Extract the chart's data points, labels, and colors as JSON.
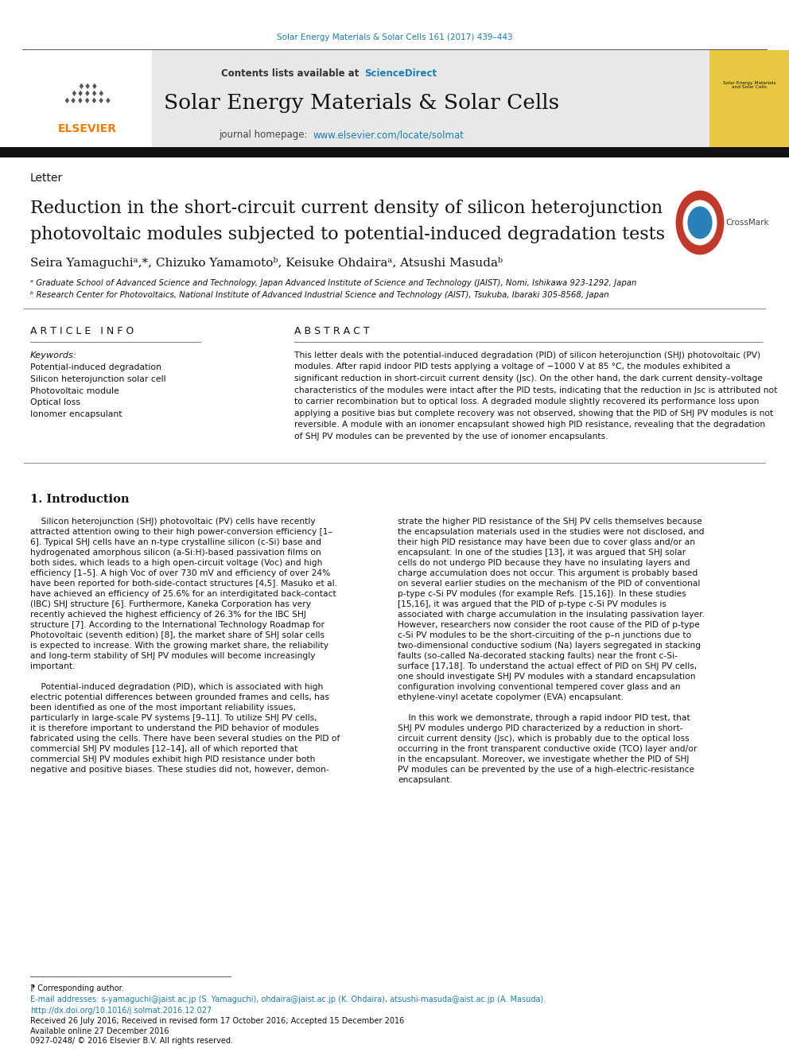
{
  "page_width": 9.92,
  "page_height": 13.23,
  "bg_color": "#ffffff",
  "journal_ref": "Solar Energy Materials & Solar Cells 161 (2017) 439–443",
  "journal_ref_color": "#1a7db5",
  "header_bg": "#e8e8e8",
  "contents_line": "Contents lists available at ",
  "sciencedirect": "ScienceDirect",
  "sciencedirect_color": "#1a7db5",
  "journal_title": "Solar Energy Materials & Solar Cells",
  "journal_homepage_label": "journal homepage: ",
  "journal_url": "www.elsevier.com/locate/solmat",
  "journal_url_color": "#1a7db5",
  "black_bar_color": "#1a1a1a",
  "letter_label": "Letter",
  "paper_title_line1": "Reduction in the short-circuit current density of silicon heterojunction",
  "paper_title_line2": "photovoltaic modules subjected to potential-induced degradation tests",
  "authors": "Seira Yamaguchiᵃ,*, Chizuko Yamamotoᵇ, Keisuke Ohdairaᵃ, Atsushi Masudaᵇ",
  "affil_a": "ᵃ Graduate School of Advanced Science and Technology, Japan Advanced Institute of Science and Technology (JAIST), Nomi, Ishikawa 923-1292, Japan",
  "affil_b": "ᵇ Research Center for Photovoltaics, National Institute of Advanced Industrial Science and Technology (AIST), Tsukuba, Ibaraki 305-8568, Japan",
  "article_info_label": "A R T I C L E   I N F O",
  "abstract_label": "A B S T R A C T",
  "keywords_label": "Keywords:",
  "keywords": [
    "Potential-induced degradation",
    "Silicon heterojunction solar cell",
    "Photovoltaic module",
    "Optical loss",
    "Ionomer encapsulant"
  ],
  "link_color": "#1a7db5",
  "elsevier_orange": "#f07f00",
  "footer_text1": "⁋ Corresponding author.",
  "footer_text2": "E-mail addresses: s-yamaguchi@jaist.ac.jp (S. Yamaguchi), ohdaira@jaist.ac.jp (K. Ohdaira), atsushi-masuda@aist.ac.jp (A. Masuda).",
  "footer_text3": "http://dx.doi.org/10.1016/j.solmat.2016.12.027",
  "footer_text4": "Received 26 July 2016; Received in revised form 17 October 2016; Accepted 15 December 2016",
  "footer_text5": "Available online 27 December 2016",
  "footer_text6": "0927-0248/ © 2016 Elsevier B.V. All rights reserved.",
  "abstract_lines": [
    "This letter deals with the potential-induced degradation (PID) of silicon heterojunction (SHJ) photovoltaic (PV)",
    "modules. After rapid indoor PID tests applying a voltage of −1000 V at 85 °C, the modules exhibited a",
    "significant reduction in short-circuit current density (Jsc). On the other hand, the dark current density–voltage",
    "characteristics of the modules were intact after the PID tests, indicating that the reduction in Jsc is attributed not",
    "to carrier recombination but to optical loss. A degraded module slightly recovered its performance loss upon",
    "applying a positive bias but complete recovery was not observed, showing that the PID of SHJ PV modules is not",
    "reversible. A module with an ionomer encapsulant showed high PID resistance, revealing that the degradation",
    "of SHJ PV modules can be prevented by the use of ionomer encapsulants."
  ],
  "col1_lines": [
    "    Silicon heterojunction (SHJ) photovoltaic (PV) cells have recently",
    "attracted attention owing to their high power-conversion efficiency [1–",
    "6]. Typical SHJ cells have an n-type crystalline silicon (c-Si) base and",
    "hydrogenated amorphous silicon (a-Si:H)-based passivation films on",
    "both sides, which leads to a high open-circuit voltage (Voc) and high",
    "efficiency [1–5]. A high Voc of over 730 mV and efficiency of over 24%",
    "have been reported for both-side-contact structures [4,5]. Masuko et al.",
    "have achieved an efficiency of 25.6% for an interdigitated back-contact",
    "(IBC) SHJ structure [6]. Furthermore, Kaneka Corporation has very",
    "recently achieved the highest efficiency of 26.3% for the IBC SHJ",
    "structure [7]. According to the International Technology Roadmap for",
    "Photovoltaic (seventh edition) [8], the market share of SHJ solar cells",
    "is expected to increase. With the growing market share, the reliability",
    "and long-term stability of SHJ PV modules will become increasingly",
    "important.",
    "",
    "    Potential-induced degradation (PID), which is associated with high",
    "electric potential differences between grounded frames and cells, has",
    "been identified as one of the most important reliability issues,",
    "particularly in large-scale PV systems [9–11]. To utilize SHJ PV cells,",
    "it is therefore important to understand the PID behavior of modules",
    "fabricated using the cells. There have been several studies on the PID of",
    "commercial SHJ PV modules [12–14], all of which reported that",
    "commercial SHJ PV modules exhibit high PID resistance under both",
    "negative and positive biases. These studies did not, however, demon-"
  ],
  "col2_lines": [
    "strate the higher PID resistance of the SHJ PV cells themselves because",
    "the encapsulation materials used in the studies were not disclosed, and",
    "their high PID resistance may have been due to cover glass and/or an",
    "encapsulant. In one of the studies [13], it was argued that SHJ solar",
    "cells do not undergo PID because they have no insulating layers and",
    "charge accumulation does not occur. This argument is probably based",
    "on several earlier studies on the mechanism of the PID of conventional",
    "p-type c-Si PV modules (for example Refs. [15,16]). In these studies",
    "[15,16], it was argued that the PID of p-type c-Si PV modules is",
    "associated with charge accumulation in the insulating passivation layer.",
    "However, researchers now consider the root cause of the PID of p-type",
    "c-Si PV modules to be the short-circuiting of the p–n junctions due to",
    "two-dimensional conductive sodium (Na) layers segregated in stacking",
    "faults (so-called Na-decorated stacking faults) near the front c-Si-",
    "surface [17,18]. To understand the actual effect of PID on SHJ PV cells,",
    "one should investigate SHJ PV modules with a standard encapsulation",
    "configuration involving conventional tempered cover glass and an",
    "ethylene-vinyl acetate copolymer (EVA) encapsulant.",
    "",
    "    In this work we demonstrate, through a rapid indoor PID test, that",
    "SHJ PV modules undergo PID characterized by a reduction in short-",
    "circuit current density (Jsc), which is probably due to the optical loss",
    "occurring in the front transparent conductive oxide (TCO) layer and/or",
    "in the encapsulant. Moreover, we investigate whether the PID of SHJ",
    "PV modules can be prevented by the use of a high-electric-resistance",
    "encapsulant."
  ]
}
